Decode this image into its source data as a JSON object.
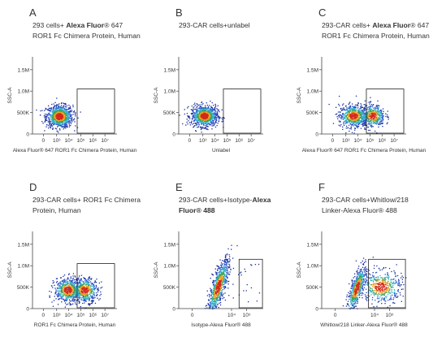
{
  "chart_data": [
    {
      "type": "scatter",
      "letter": "A",
      "title_lines": [
        [
          "293 cells+ ",
          ""
        ],
        [
          "Alexa Fluor",
          "b"
        ],
        [
          "® 647",
          ""
        ]
      ],
      "title_line2": "ROR1 Fc Chimera Protein, Human",
      "xlabel": "Alexa Fluor® 647 ROR1 Fc Chimera Protein, Human",
      "ylabel": "SSC-A",
      "xticks": [
        "0",
        "10³",
        "10⁴",
        "10⁵",
        "10⁶",
        "10⁷"
      ],
      "yticks": [
        "0",
        "500K",
        "1.0M",
        "1.5M"
      ],
      "xlim": [
        0,
        7
      ],
      "ylim": [
        0,
        1800000
      ],
      "gate": {
        "x": [
          3.7,
          6.8
        ],
        "y": [
          0,
          1050000
        ]
      },
      "clusters": [
        {
          "cx": 2.2,
          "cy": 420000,
          "sx": 0.55,
          "sy": 130000,
          "n": 900
        }
      ],
      "tail": {
        "n": 0
      }
    },
    {
      "type": "scatter",
      "letter": "B",
      "title_lines": [
        [
          "293-CAR cells+unlabel",
          ""
        ]
      ],
      "title_line2": "",
      "xlabel": "Unlabel",
      "ylabel": "SSC-A",
      "xticks": [
        "0",
        "10³",
        "10⁴",
        "10⁵",
        "10⁶",
        "10⁷"
      ],
      "yticks": [
        "0",
        "500K",
        "1.0M",
        "1.5M"
      ],
      "xlim": [
        0,
        7
      ],
      "ylim": [
        0,
        1800000
      ],
      "gate": {
        "x": [
          3.7,
          6.8
        ],
        "y": [
          0,
          1050000
        ]
      },
      "clusters": [
        {
          "cx": 2.1,
          "cy": 430000,
          "sx": 0.55,
          "sy": 120000,
          "n": 900
        }
      ],
      "tail": {
        "n": 0
      }
    },
    {
      "type": "scatter",
      "letter": "C",
      "title_lines": [
        [
          "293-CAR cells+ ",
          ""
        ],
        [
          "Alexa Fluor",
          "b"
        ],
        [
          "® 647",
          ""
        ]
      ],
      "title_line2": "ROR1 Fc Chimera Protein, Human",
      "xlabel": "Alexa Fluor® 647 ROR1 Fc Chimera Protein, Human",
      "ylabel": "SSC-A",
      "xticks": [
        "0",
        "10³",
        "10⁴",
        "10⁵",
        "10⁶",
        "10⁷"
      ],
      "yticks": [
        "0",
        "500K",
        "1.0M",
        "1.5M"
      ],
      "xlim": [
        0,
        7
      ],
      "ylim": [
        0,
        1800000
      ],
      "gate": {
        "x": [
          3.7,
          6.8
        ],
        "y": [
          0,
          1050000
        ]
      },
      "clusters": [
        {
          "cx": 2.6,
          "cy": 430000,
          "sx": 0.6,
          "sy": 130000,
          "n": 650
        },
        {
          "cx": 4.2,
          "cy": 430000,
          "sx": 0.5,
          "sy": 130000,
          "n": 450
        }
      ],
      "tail": {
        "n": 0
      }
    },
    {
      "type": "scatter",
      "letter": "D",
      "title_lines": [
        [
          "293-CAR cells+ ROR1 Fc Chimera",
          ""
        ]
      ],
      "title_line2": "Protein, Human",
      "xlabel": "ROR1 Fc Chimera Protein, Human",
      "ylabel": "SSC-A",
      "xticks": [
        "0",
        "10³",
        "10⁴",
        "10⁵",
        "10⁶",
        "10⁷"
      ],
      "yticks": [
        "0",
        "500K",
        "1.0M",
        "1.5M"
      ],
      "xlim": [
        0,
        7
      ],
      "ylim": [
        0,
        1800000
      ],
      "gate": {
        "x": [
          3.7,
          6.8
        ],
        "y": [
          0,
          1050000
        ]
      },
      "clusters": [
        {
          "cx": 2.9,
          "cy": 440000,
          "sx": 0.55,
          "sy": 140000,
          "n": 600
        },
        {
          "cx": 4.3,
          "cy": 440000,
          "sx": 0.55,
          "sy": 140000,
          "n": 500
        }
      ],
      "tail": {
        "n": 0
      }
    },
    {
      "type": "scatter",
      "letter": "E",
      "title_lines": [
        [
          "293-CAR cells+Isotype-",
          ""
        ],
        [
          "Alexa",
          "b"
        ]
      ],
      "title_line2": "Fluor® 488",
      "title_line2_bold": true,
      "xlabel": "Isotype-Alexa Fluor® 488",
      "ylabel": "SSC-A",
      "xticks": [
        "0",
        "10⁴",
        "10⁵"
      ],
      "yticks": [
        "0",
        "500K",
        "1.0M",
        "1.5M"
      ],
      "xlim": [
        0,
        5.6
      ],
      "ylim": [
        0,
        1800000
      ],
      "gate": {
        "x": [
          4.0,
          5.55
        ],
        "y": [
          0,
          1150000
        ]
      },
      "clusters": [
        {
          "cx": 2.6,
          "cy": 520000,
          "sx": 0.35,
          "sy": 200000,
          "n": 800,
          "slope": 250000
        }
      ],
      "tail": {
        "n": 30
      }
    },
    {
      "type": "scatter",
      "letter": "F",
      "title_lines": [
        [
          "293-CAR cells+Whitlow/218",
          ""
        ]
      ],
      "title_line2": "Linker-Alexa Fluor® 488",
      "title_line2_mixed": true,
      "xlabel": "Whitlow/218 Linker-Alexa Fluor® 488",
      "ylabel": "SSC-A",
      "xticks": [
        "0",
        "10⁴",
        "10⁵"
      ],
      "yticks": [
        "0",
        "500K",
        "1.0M",
        "1.5M"
      ],
      "xlim": [
        0,
        5.6
      ],
      "ylim": [
        0,
        1800000
      ],
      "gate": {
        "x": [
          3.1,
          5.55
        ],
        "y": [
          0,
          1150000
        ]
      },
      "clusters": [
        {
          "cx": 2.3,
          "cy": 480000,
          "sx": 0.3,
          "sy": 170000,
          "n": 550,
          "slope": 200000
        },
        {
          "cx": 3.9,
          "cy": 520000,
          "sx": 0.7,
          "sy": 190000,
          "n": 500
        }
      ],
      "tail": {
        "n": 0
      }
    }
  ]
}
